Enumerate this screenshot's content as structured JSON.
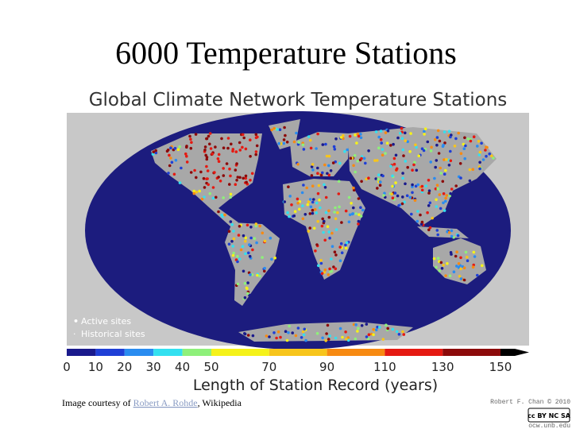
{
  "title": "6000 Temperature Stations",
  "figure": {
    "title": "Global Climate Network Temperature Stations",
    "legend": [
      "Active sites",
      "Historical sites"
    ],
    "colorbar": {
      "ticks": [
        0,
        10,
        20,
        30,
        40,
        50,
        70,
        90,
        110,
        130,
        150
      ],
      "colors": [
        "#1a1a8c",
        "#1f3fd6",
        "#2a8cf0",
        "#33e0f0",
        "#8ef07a",
        "#f5f21a",
        "#f7c51c",
        "#f78a12",
        "#e51a12",
        "#8c0a0a"
      ],
      "label": "Length of Station Record (years)"
    }
  },
  "credit": {
    "prefix": "Image courtesy of ",
    "link": "Robert A. Rohde",
    "suffix": ", Wikipedia"
  },
  "footer": {
    "author": "Robert F. Chan © 2010",
    "license": "cc BY NC SA",
    "site": "ocw.unb.edu"
  }
}
